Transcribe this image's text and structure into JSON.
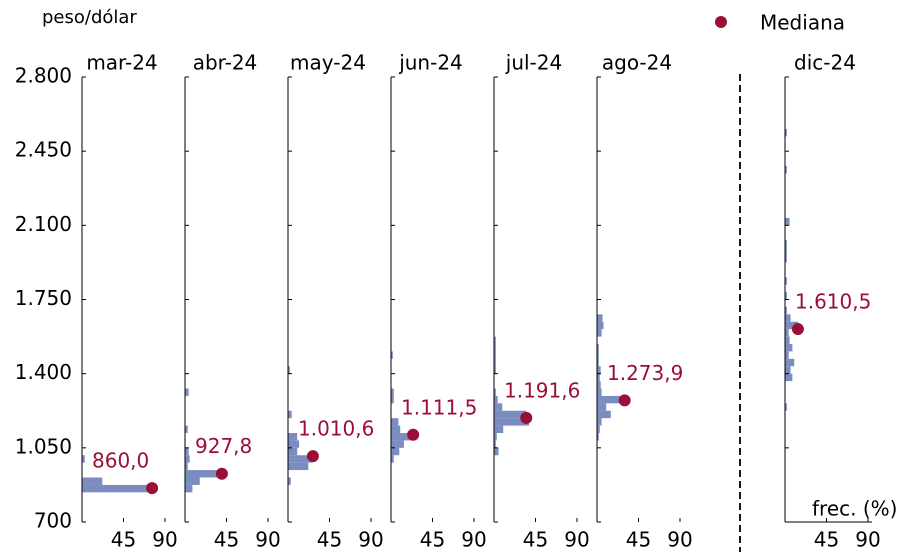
{
  "chart_data": {
    "type": "histogram",
    "ylabel": "peso/dólar",
    "xlabel": "frec. (%)",
    "legend": "Mediana",
    "bar_color": "#7b8cc0",
    "median_color": "#9b0f35",
    "ylim": [
      700,
      2800
    ],
    "yticks": [
      700,
      {
        "value": 1050,
        "label": "1.050"
      },
      {
        "value": 1400,
        "label": "1.400"
      },
      {
        "value": 1750,
        "label": "1.750"
      },
      {
        "value": 2100,
        "label": "2.100"
      },
      {
        "value": 2450,
        "label": "2.450"
      },
      {
        "value": 2800,
        "label": "2.800"
      }
    ],
    "xlim": [
      0,
      90
    ],
    "xticks": [
      45,
      90
    ],
    "panels": [
      {
        "title": "mar-24",
        "bins": [
          840,
          875,
          910,
          945,
          980,
          1015
        ],
        "values": [
          76,
          22,
          0,
          0,
          3
        ],
        "median": 860.0,
        "median_label": "860,0"
      },
      {
        "title": "abr-24",
        "bins": [
          840,
          875,
          910,
          945,
          980,
          1015,
          1050,
          1085,
          1120,
          1155,
          1190,
          1225,
          1260,
          1295,
          1330
        ],
        "values": [
          8,
          16,
          40,
          3,
          5,
          4,
          0,
          0,
          3,
          0,
          0,
          0,
          0,
          4
        ],
        "median": 927.8,
        "median_label": "927,8"
      },
      {
        "title": "may-24",
        "bins": [
          875,
          910,
          945,
          980,
          1015,
          1050,
          1085,
          1120,
          1155,
          1190,
          1225,
          1260,
          1295,
          1330,
          1365,
          1400,
          1435
        ],
        "values": [
          3,
          0,
          22,
          27,
          10,
          12,
          10,
          0,
          0,
          4,
          0,
          0,
          0,
          0,
          0,
          2
        ],
        "median": 1010.6,
        "median_label": "1.010,6"
      },
      {
        "title": "jun-24",
        "bins": [
          980,
          1015,
          1050,
          1085,
          1120,
          1155,
          1190,
          1225,
          1260,
          1295,
          1330,
          1365,
          1400,
          1435,
          1470,
          1505
        ],
        "values": [
          3,
          9,
          14,
          24,
          10,
          8,
          0,
          0,
          3,
          3,
          0,
          0,
          0,
          0,
          2
        ],
        "median": 1111.5,
        "median_label": "1.111,5"
      },
      {
        "title": "jul-24",
        "bins": [
          1015,
          1050,
          1085,
          1120,
          1155,
          1190,
          1225,
          1260,
          1295,
          1330,
          1365,
          1400,
          1435,
          1470,
          1505,
          1540,
          1575
        ],
        "values": [
          5,
          2,
          3,
          10,
          38,
          35,
          9,
          4,
          2,
          0,
          0,
          2,
          2,
          2,
          2,
          2
        ],
        "median": 1191.6,
        "median_label": "1.191,6"
      },
      {
        "title": "ago-24",
        "bins": [
          1085,
          1120,
          1155,
          1190,
          1225,
          1260,
          1295,
          1330,
          1365,
          1400,
          1435,
          1470,
          1505,
          1540,
          1575,
          1610,
          1645,
          1680
        ],
        "values": [
          2,
          3,
          5,
          15,
          10,
          30,
          5,
          4,
          3,
          4,
          2,
          2,
          2,
          0,
          5,
          7,
          6
        ],
        "median": 1273.9,
        "median_label": "1.273,9"
      },
      {
        "title": "dic-24",
        "bins": [
          1225,
          1260,
          1295,
          1330,
          1365,
          1400,
          1435,
          1470,
          1505,
          1540,
          1575,
          1610,
          1645,
          1680,
          1715,
          1750,
          1785,
          1820,
          1855,
          1890,
          1925,
          1960,
          1995,
          2030,
          2065,
          2100,
          2135,
          2170,
          2205,
          2240,
          2275,
          2310,
          2345,
          2380,
          2415,
          2450,
          2485,
          2520,
          2555,
          2590
        ],
        "values": [
          2,
          0,
          0,
          0,
          8,
          6,
          10,
          4,
          8,
          5,
          4,
          14,
          6,
          2,
          0,
          2,
          0,
          2,
          0,
          0,
          2,
          2,
          2,
          0,
          0,
          5,
          0,
          0,
          0,
          0,
          0,
          0,
          2,
          0,
          0,
          0,
          0,
          2,
          0
        ],
        "median": 1610.5,
        "median_label": "1.610,5"
      }
    ]
  }
}
